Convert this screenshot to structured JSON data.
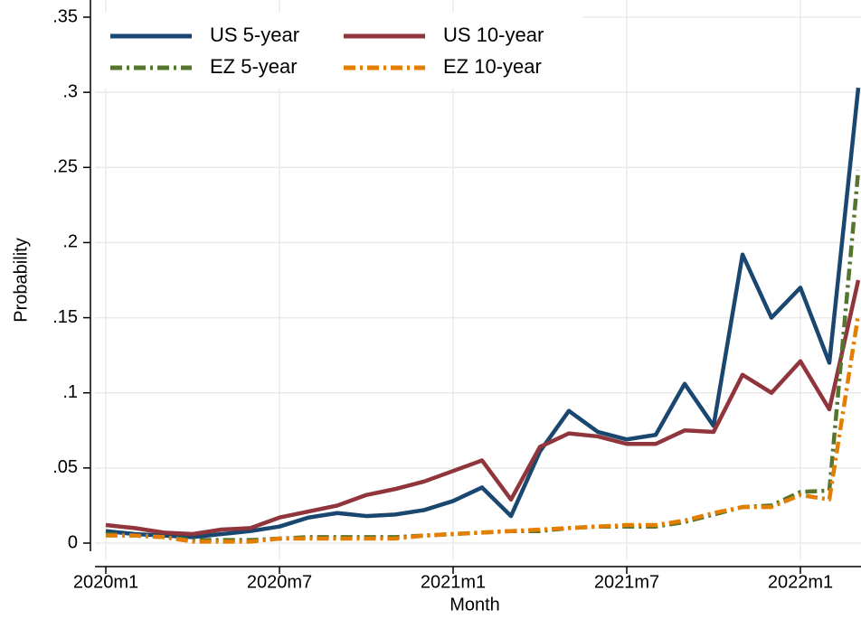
{
  "chart_data": {
    "type": "line",
    "categories": [
      "2020m1",
      null,
      null,
      null,
      null,
      null,
      "2020m7",
      null,
      null,
      null,
      null,
      null,
      "2021m1",
      null,
      null,
      null,
      null,
      null,
      "2021m7",
      null,
      null,
      null,
      null,
      null,
      "2022m1",
      null,
      null
    ],
    "series": [
      {
        "name": "US 5-year",
        "color": "#1a476f",
        "dash": "solid",
        "values": [
          0.008,
          0.006,
          0.005,
          0.004,
          0.006,
          0.008,
          0.011,
          0.017,
          0.02,
          0.018,
          0.019,
          0.022,
          0.028,
          0.037,
          0.018,
          0.061,
          0.088,
          0.074,
          0.069,
          0.072,
          0.106,
          0.078,
          0.192,
          0.15,
          0.17,
          0.12,
          0.303
        ]
      },
      {
        "name": "US 10-year",
        "color": "#90353b",
        "dash": "solid",
        "values": [
          0.012,
          0.01,
          0.007,
          0.006,
          0.009,
          0.01,
          0.017,
          0.021,
          0.025,
          0.032,
          0.036,
          0.041,
          0.048,
          0.055,
          0.029,
          0.064,
          0.073,
          0.071,
          0.066,
          0.066,
          0.075,
          0.074,
          0.112,
          0.1,
          0.121,
          0.089,
          0.175
        ]
      },
      {
        "name": "EZ 5-year",
        "color": "#55752f",
        "dash": "dashdot",
        "values": [
          0.006,
          0.005,
          0.004,
          0.002,
          0.002,
          0.002,
          0.003,
          0.004,
          0.004,
          0.004,
          0.004,
          0.005,
          0.006,
          0.007,
          0.008,
          0.008,
          0.01,
          0.011,
          0.011,
          0.011,
          0.014,
          0.019,
          0.024,
          0.025,
          0.034,
          0.035,
          0.248
        ]
      },
      {
        "name": "EZ 10-year",
        "color": "#e37e00",
        "dash": "dashdot",
        "values": [
          0.005,
          0.005,
          0.004,
          0.001,
          0.001,
          0.001,
          0.003,
          0.003,
          0.003,
          0.003,
          0.003,
          0.005,
          0.006,
          0.007,
          0.008,
          0.009,
          0.01,
          0.011,
          0.012,
          0.012,
          0.015,
          0.02,
          0.024,
          0.024,
          0.032,
          0.029,
          0.152
        ]
      }
    ],
    "x_label": "Month",
    "y_label": "Probability",
    "ylim": [
      0,
      0.35
    ],
    "yticks": [
      0,
      {
        "value": 0.05,
        "label": ".05"
      },
      {
        "value": 0.1,
        "label": ".1"
      },
      {
        "value": 0.15,
        "label": ".15"
      },
      {
        "value": 0.2,
        "label": ".2"
      },
      {
        "value": 0.25,
        "label": ".25"
      },
      {
        "value": 0.3,
        "label": ".3"
      },
      {
        "value": 0.35,
        "label": ".35"
      }
    ],
    "grid": true,
    "legend": "top-left"
  }
}
